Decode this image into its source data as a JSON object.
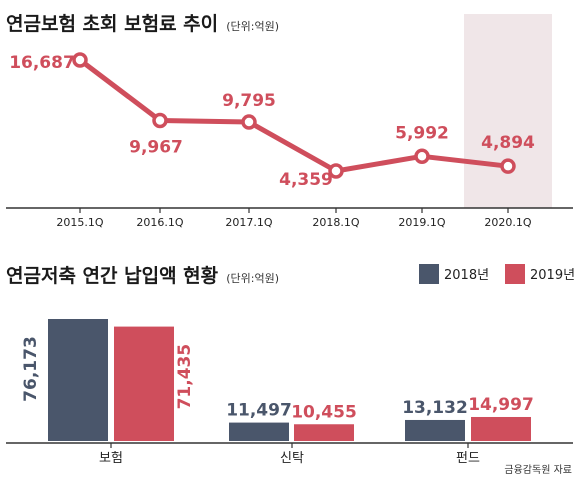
{
  "colors": {
    "primary": "#cf4e5c",
    "secondary": "#4a566b",
    "highlight": "#f0e6e8",
    "axis": "#333333"
  },
  "chart_data": [
    {
      "type": "line",
      "title": "연금보험 초회 보험료 추이",
      "unit": "(단위:억원)",
      "categories": [
        "2015.1Q",
        "2016.1Q",
        "2017.1Q",
        "2018.1Q",
        "2019.1Q",
        "2020.1Q"
      ],
      "values": [
        16687,
        9967,
        9795,
        4359,
        5992,
        4894
      ],
      "value_labels": [
        "16,687",
        "9,967",
        "9,795",
        "4,359",
        "5,992",
        "4,894"
      ],
      "highlighted_category": "2020.1Q",
      "ylim": [
        3000,
        18000
      ],
      "grid": false
    },
    {
      "type": "bar",
      "title": "연금저축 연간 납입액 현황",
      "unit": "(단위:억원)",
      "categories": [
        "보험",
        "신탁",
        "펀드"
      ],
      "series": [
        {
          "name": "2018년",
          "values": [
            76173,
            11497,
            13132
          ],
          "labels": [
            "76,173",
            "11,497",
            "13,132"
          ]
        },
        {
          "name": "2019년",
          "values": [
            71435,
            10455,
            14997
          ],
          "labels": [
            "71,435",
            "10,455",
            "14,997"
          ]
        }
      ],
      "ylim": [
        0,
        80000
      ],
      "legend": "top-right",
      "grid": false
    }
  ],
  "source": "금융감독원 자료"
}
